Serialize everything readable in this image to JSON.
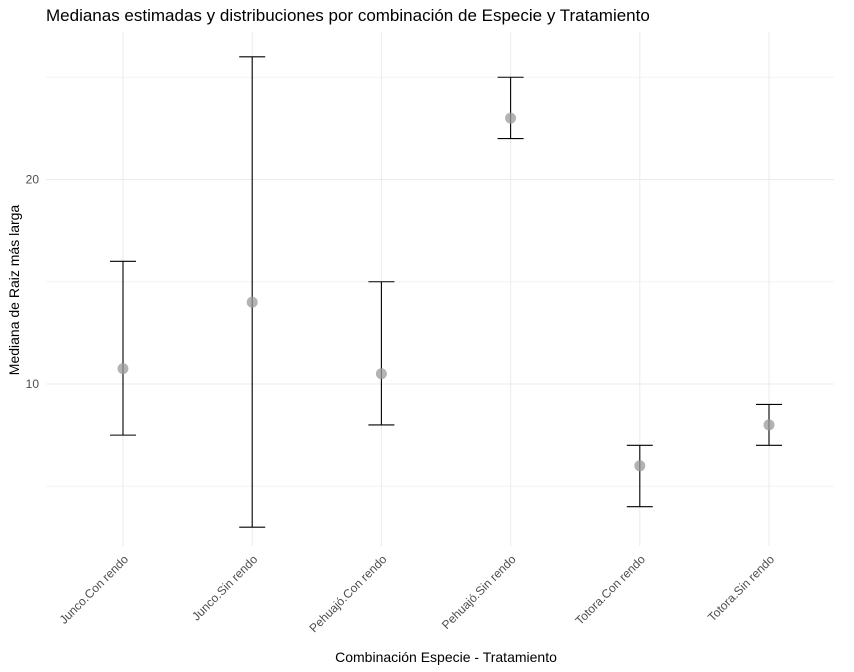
{
  "chart_data": {
    "type": "errorbar-point",
    "title": "Medianas estimadas y distribuciones por combinación de Especie y Tratamiento",
    "xlabel": "Combinación Especie - Tratamiento",
    "ylabel": "Mediana de Raiz más larga",
    "categories": [
      "Junco.Con rendo",
      "Junco.Sin rendo",
      "Pehuajó.Con rendo",
      "Pehuajó.Sin rendo",
      "Totora.Con rendo",
      "Totora.Sin rendo"
    ],
    "median": [
      10.75,
      14,
      10.5,
      23,
      6,
      8
    ],
    "lower": [
      7.5,
      3,
      8,
      22,
      4,
      7
    ],
    "upper": [
      16,
      26,
      15,
      25,
      7,
      9
    ],
    "ylim": [
      2.2,
      27.1
    ],
    "yticks": [
      10,
      20
    ],
    "grid": true,
    "point_color": "#999999"
  }
}
